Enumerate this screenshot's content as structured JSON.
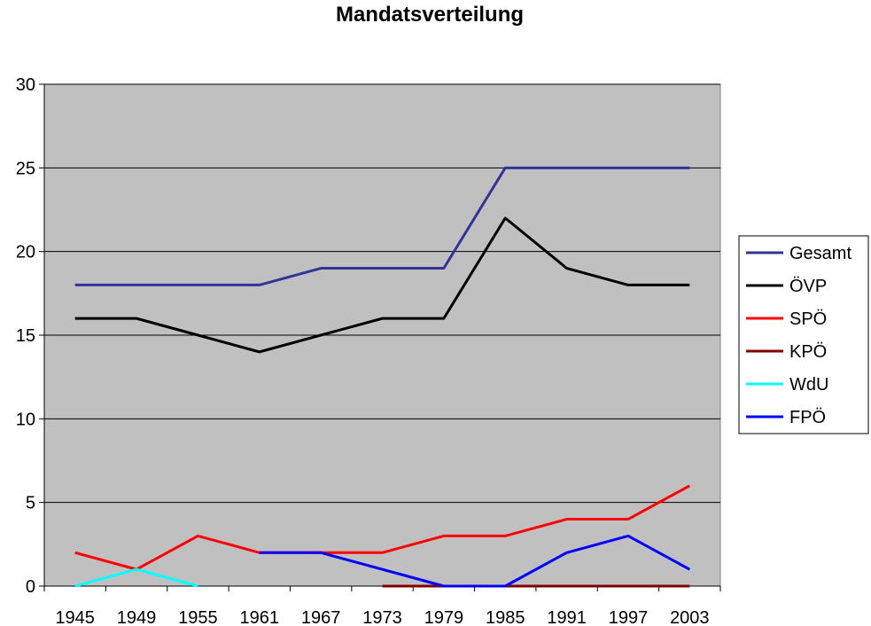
{
  "chart_data": {
    "type": "line",
    "title": "Mandatsverteilung",
    "xlabel": "",
    "ylabel": "",
    "categories": [
      "1945",
      "1949",
      "1955",
      "1961",
      "1967",
      "1973",
      "1979",
      "1985",
      "1991",
      "1997",
      "2003"
    ],
    "ylim": [
      0,
      30
    ],
    "yticks": [
      0,
      5,
      10,
      15,
      20,
      25,
      30
    ],
    "grid": true,
    "legend_position": "right",
    "plot_background": "#C0C0C0",
    "series": [
      {
        "name": "Gesamt",
        "color": "#333399",
        "values": [
          18,
          18,
          18,
          18,
          19,
          19,
          19,
          25,
          25,
          25,
          25
        ]
      },
      {
        "name": "ÖVP",
        "color": "#000000",
        "values": [
          16,
          16,
          15,
          14,
          15,
          16,
          16,
          22,
          19,
          18,
          18
        ]
      },
      {
        "name": "SPÖ",
        "color": "#FF0000",
        "values": [
          2,
          1,
          3,
          2,
          2,
          2,
          3,
          3,
          4,
          4,
          6
        ]
      },
      {
        "name": "KPÖ",
        "color": "#800000",
        "values": [
          null,
          null,
          null,
          null,
          null,
          0,
          0,
          0,
          0,
          0,
          0
        ]
      },
      {
        "name": "WdU",
        "color": "#00FFFF",
        "values": [
          0,
          1,
          0,
          null,
          null,
          null,
          null,
          null,
          null,
          null,
          null
        ]
      },
      {
        "name": "FPÖ",
        "color": "#0000FF",
        "values": [
          null,
          null,
          null,
          2,
          2,
          1,
          0,
          0,
          2,
          3,
          1
        ]
      }
    ]
  }
}
